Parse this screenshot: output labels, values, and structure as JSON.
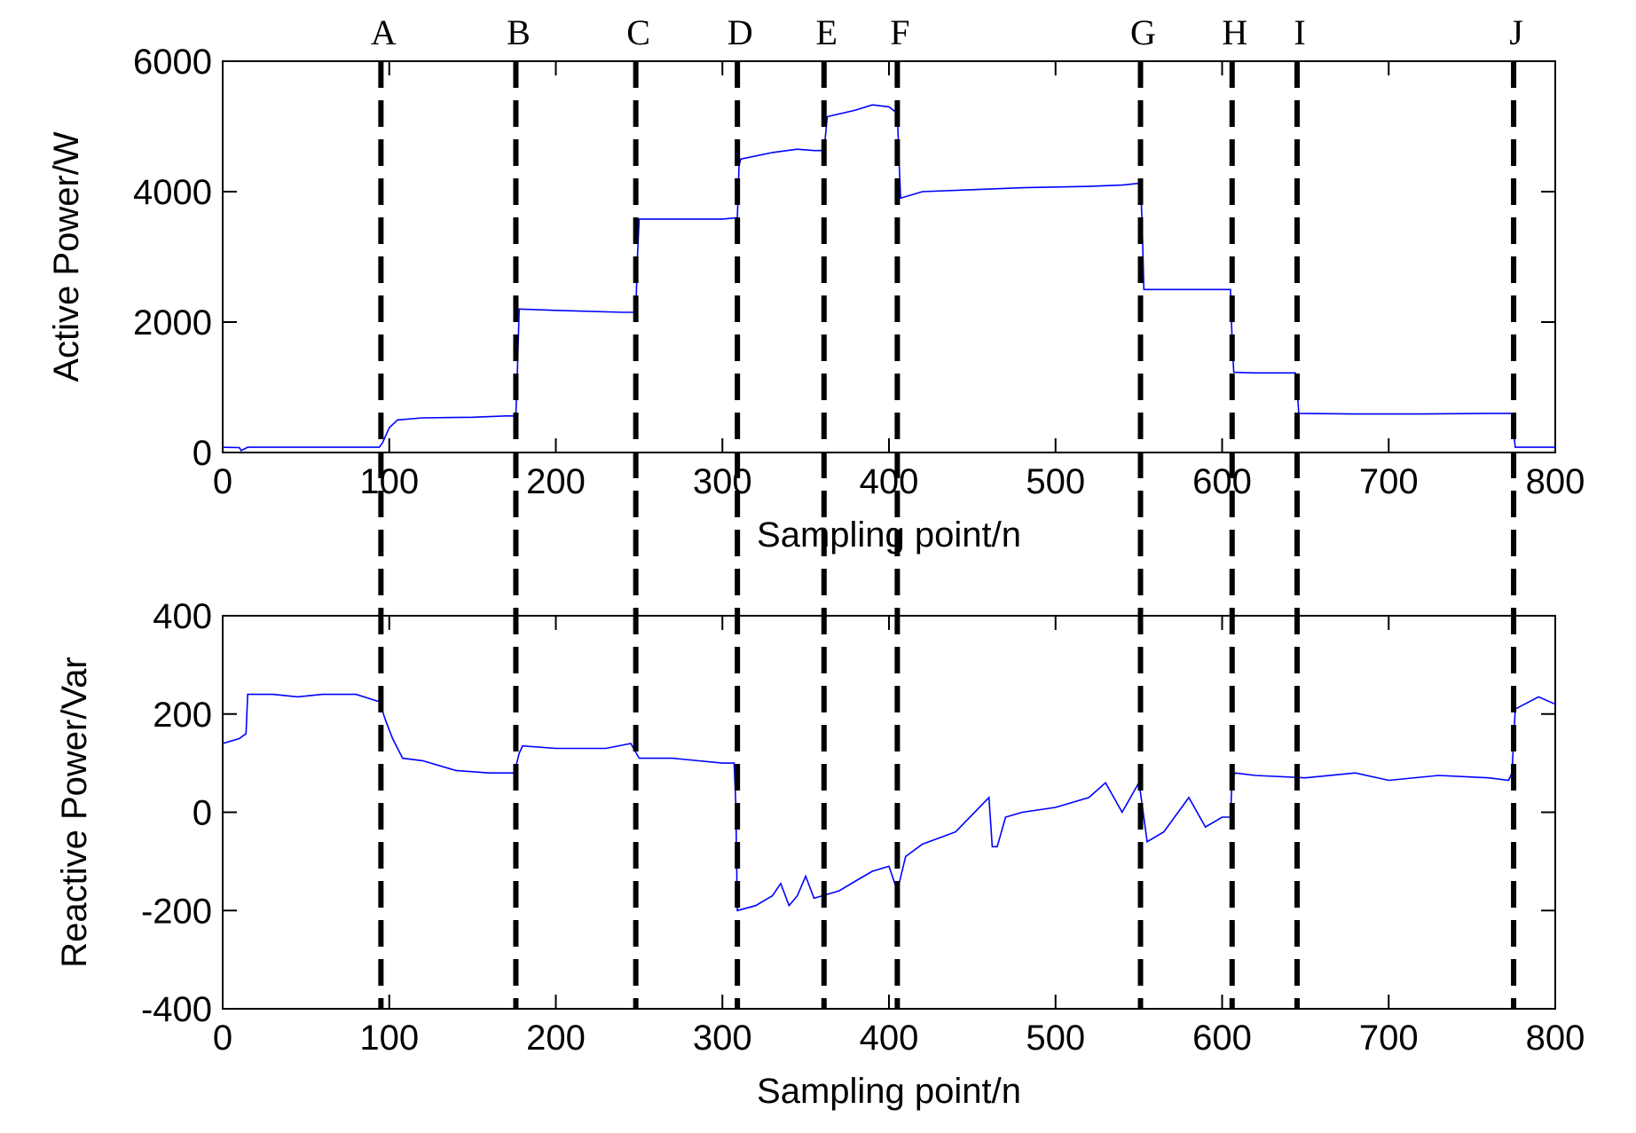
{
  "colors": {
    "series": "#0000ff",
    "axis": "#000000",
    "event_line": "#000000"
  },
  "events": [
    {
      "label": "A",
      "x": 95
    },
    {
      "label": "B",
      "x": 176
    },
    {
      "label": "C",
      "x": 248
    },
    {
      "label": "D",
      "x": 309
    },
    {
      "label": "E",
      "x": 361
    },
    {
      "label": "F",
      "x": 405
    },
    {
      "label": "G",
      "x": 551
    },
    {
      "label": "H",
      "x": 606
    },
    {
      "label": "I",
      "x": 645
    },
    {
      "label": "J",
      "x": 775
    }
  ],
  "chart_data": [
    {
      "type": "line",
      "xlabel": "Sampling point/n",
      "ylabel": "Active Power/W",
      "xlim": [
        0,
        800
      ],
      "ylim": [
        0,
        6000
      ],
      "xticks": [
        0,
        100,
        200,
        300,
        400,
        500,
        600,
        700,
        800
      ],
      "xtick_labels": [
        "0",
        "100",
        "200",
        "300",
        "400",
        "500",
        "600",
        "700",
        "800"
      ],
      "yticks": [
        0,
        2000,
        4000,
        6000
      ],
      "ytick_labels": [
        "0",
        "2000",
        "4000",
        "6000"
      ],
      "series": [
        {
          "x": [
            0,
            10,
            11,
            15,
            94,
            96,
            100,
            105,
            120,
            150,
            170,
            176,
            177,
            178,
            200,
            240,
            248,
            249,
            250,
            260,
            300,
            309,
            310,
            311,
            330,
            345,
            355,
            361,
            362,
            363,
            380,
            390,
            400,
            405,
            406,
            407,
            420,
            450,
            480,
            520,
            540,
            551,
            552,
            553,
            580,
            605,
            606,
            607,
            620,
            644,
            645,
            646,
            680,
            720,
            760,
            774,
            775,
            776,
            800
          ],
          "y": [
            80,
            75,
            30,
            80,
            80,
            150,
            380,
            500,
            530,
            540,
            560,
            560,
            1300,
            2200,
            2180,
            2150,
            2150,
            3000,
            3580,
            3580,
            3580,
            3600,
            4400,
            4500,
            4600,
            4650,
            4630,
            4630,
            4900,
            5150,
            5250,
            5330,
            5300,
            5200,
            4500,
            3900,
            4000,
            4030,
            4060,
            4080,
            4100,
            4130,
            3500,
            2500,
            2500,
            2500,
            1700,
            1230,
            1220,
            1220,
            1000,
            600,
            590,
            590,
            600,
            600,
            300,
            80,
            80
          ]
        }
      ]
    },
    {
      "type": "line",
      "xlabel": "Sampling point/n",
      "ylabel": "Reactive Power/Var",
      "xlim": [
        0,
        800
      ],
      "ylim": [
        -400,
        400
      ],
      "xticks": [
        0,
        100,
        200,
        300,
        400,
        500,
        600,
        700,
        800
      ],
      "xtick_labels": [
        "0",
        "100",
        "200",
        "300",
        "400",
        "500",
        "600",
        "700",
        "800"
      ],
      "yticks": [
        -400,
        -200,
        0,
        200,
        400
      ],
      "ytick_labels": [
        "-400",
        "-200",
        "0",
        "200",
        "400"
      ],
      "series": [
        {
          "x": [
            0,
            10,
            14,
            15,
            30,
            45,
            60,
            80,
            94,
            98,
            102,
            108,
            120,
            140,
            160,
            175,
            178,
            180,
            200,
            230,
            245,
            250,
            270,
            300,
            307,
            308,
            309,
            320,
            330,
            335,
            340,
            345,
            350,
            355,
            360,
            370,
            380,
            390,
            400,
            405,
            410,
            420,
            440,
            460,
            462,
            465,
            470,
            480,
            500,
            520,
            530,
            540,
            550,
            551,
            555,
            565,
            580,
            590,
            600,
            605,
            606,
            608,
            620,
            650,
            680,
            700,
            730,
            760,
            772,
            774,
            776,
            790,
            800
          ],
          "y": [
            140,
            150,
            160,
            240,
            240,
            235,
            240,
            240,
            225,
            185,
            150,
            110,
            105,
            85,
            80,
            80,
            120,
            135,
            130,
            130,
            140,
            110,
            110,
            100,
            100,
            20,
            -200,
            -190,
            -170,
            -145,
            -190,
            -170,
            -130,
            -175,
            -170,
            -160,
            -140,
            -120,
            -110,
            -160,
            -90,
            -65,
            -40,
            30,
            -70,
            -70,
            -10,
            0,
            10,
            30,
            60,
            0,
            60,
            40,
            -60,
            -40,
            30,
            -30,
            -10,
            -10,
            70,
            80,
            75,
            70,
            80,
            65,
            75,
            70,
            65,
            80,
            210,
            235,
            220
          ]
        }
      ]
    }
  ]
}
